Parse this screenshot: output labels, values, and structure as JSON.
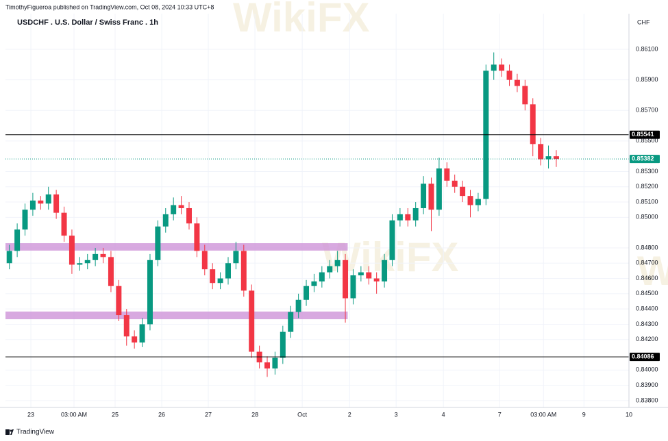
{
  "header": "TimothyFigueroa published on TradingView.com, Oct 08, 2024 10:33 UTC+8",
  "footer": "TradingView",
  "watermark": "WikiFX",
  "chart_data": {
    "type": "candlestick",
    "title": "USDCHF . U.S. Dollar / Swiss Franc . 1h",
    "currency": "CHF",
    "up_color": "#089981",
    "down_color": "#f23645",
    "grid": true,
    "open": [
      0.847,
      0.8478,
      0.8492,
      0.8505,
      0.8511,
      0.8509,
      0.8515,
      0.8503,
      0.8488,
      0.8469,
      0.847,
      0.8472,
      0.8476,
      0.8474,
      0.8455,
      0.8436,
      0.8422,
      0.8418,
      0.843,
      0.8472,
      0.8494,
      0.8502,
      0.8508,
      0.8506,
      0.8496,
      0.8478,
      0.8466,
      0.8457,
      0.846,
      0.847,
      0.8478,
      0.8452,
      0.8412,
      0.8405,
      0.8401,
      0.8408,
      0.8425,
      0.8438,
      0.8446,
      0.8455,
      0.8458,
      0.8464,
      0.8468,
      0.8472,
      0.8447,
      0.8462,
      0.8464,
      0.846,
      0.8458,
      0.8472,
      0.8498,
      0.8502,
      0.8498,
      0.8506,
      0.8522,
      0.8505,
      0.8532,
      0.8524,
      0.852,
      0.8514,
      0.8508,
      0.8512,
      0.8596,
      0.86,
      0.8596,
      0.859,
      0.8586,
      0.8574,
      0.8548,
      0.8538,
      0.854
    ],
    "high": [
      0.8482,
      0.8496,
      0.8509,
      0.8516,
      0.8514,
      0.852,
      0.8518,
      0.8507,
      0.8492,
      0.8474,
      0.8476,
      0.848,
      0.848,
      0.8478,
      0.8459,
      0.844,
      0.8426,
      0.8434,
      0.8476,
      0.8498,
      0.8506,
      0.8513,
      0.8514,
      0.851,
      0.85,
      0.8482,
      0.847,
      0.8464,
      0.8474,
      0.8484,
      0.8482,
      0.8456,
      0.8416,
      0.8409,
      0.8412,
      0.8429,
      0.8442,
      0.845,
      0.8459,
      0.8463,
      0.8468,
      0.8472,
      0.8478,
      0.8476,
      0.8466,
      0.8468,
      0.8468,
      0.8464,
      0.8476,
      0.8502,
      0.8506,
      0.8506,
      0.851,
      0.8527,
      0.8526,
      0.8539,
      0.8536,
      0.8528,
      0.8524,
      0.8518,
      0.8516,
      0.86,
      0.8608,
      0.8604,
      0.86,
      0.8594,
      0.859,
      0.8578,
      0.8552,
      0.8547,
      0.8544
    ],
    "low": [
      0.8466,
      0.8474,
      0.8488,
      0.8501,
      0.8505,
      0.8505,
      0.8499,
      0.8484,
      0.8463,
      0.8465,
      0.8466,
      0.8468,
      0.847,
      0.8451,
      0.8432,
      0.8416,
      0.8414,
      0.8415,
      0.8426,
      0.8468,
      0.849,
      0.8498,
      0.8502,
      0.8492,
      0.8474,
      0.8462,
      0.8453,
      0.8453,
      0.8456,
      0.8466,
      0.8448,
      0.8408,
      0.8401,
      0.83955,
      0.8397,
      0.8404,
      0.8421,
      0.8434,
      0.8442,
      0.8451,
      0.8454,
      0.846,
      0.8464,
      0.8431,
      0.8443,
      0.8458,
      0.8456,
      0.845,
      0.8454,
      0.8468,
      0.8494,
      0.8494,
      0.8494,
      0.8502,
      0.8491,
      0.8501,
      0.852,
      0.8516,
      0.851,
      0.85,
      0.8504,
      0.8508,
      0.859,
      0.8592,
      0.8586,
      0.8582,
      0.857,
      0.854,
      0.8534,
      0.8532,
      0.8533
    ],
    "close": [
      0.8478,
      0.8492,
      0.8505,
      0.8511,
      0.8509,
      0.8515,
      0.8503,
      0.8488,
      0.8469,
      0.847,
      0.8472,
      0.8476,
      0.8474,
      0.8455,
      0.8436,
      0.8422,
      0.8418,
      0.843,
      0.8472,
      0.8494,
      0.8502,
      0.8508,
      0.8506,
      0.8496,
      0.8478,
      0.8466,
      0.8457,
      0.846,
      0.847,
      0.8478,
      0.8452,
      0.8412,
      0.8405,
      0.8401,
      0.8408,
      0.8425,
      0.8438,
      0.8446,
      0.8455,
      0.8458,
      0.8464,
      0.8468,
      0.8472,
      0.8447,
      0.8462,
      0.8464,
      0.846,
      0.8458,
      0.8472,
      0.8498,
      0.8502,
      0.8498,
      0.8506,
      0.8522,
      0.8505,
      0.8532,
      0.8524,
      0.852,
      0.8514,
      0.8508,
      0.8512,
      0.8596,
      0.86,
      0.8596,
      0.859,
      0.8586,
      0.8574,
      0.8548,
      0.8538,
      0.854,
      0.85382
    ],
    "xlim": [
      -0.5,
      79.3
    ],
    "xticks": [
      {
        "value": 2.75,
        "label": "23"
      },
      {
        "value": 8.27,
        "label": "03:00 AM"
      },
      {
        "value": 13.53,
        "label": "25"
      },
      {
        "value": 19.5,
        "label": "26"
      },
      {
        "value": 25.46,
        "label": "27"
      },
      {
        "value": 31.43,
        "label": "28"
      },
      {
        "value": 37.48,
        "label": "Oct"
      },
      {
        "value": 43.54,
        "label": "2"
      },
      {
        "value": 49.5,
        "label": "3"
      },
      {
        "value": 55.55,
        "label": "4"
      },
      {
        "value": 62.75,
        "label": "7"
      },
      {
        "value": 68.36,
        "label": "03:00 AM"
      },
      {
        "value": 73.54,
        "label": "9"
      },
      {
        "value": 79.3,
        "label": "10"
      }
    ],
    "ylim": [
      0.83755,
      0.86311
    ],
    "yticks": [
      {
        "value": 0.861,
        "label": "0.86100"
      },
      {
        "value": 0.859,
        "label": "0.85900"
      },
      {
        "value": 0.857,
        "label": "0.85700"
      },
      {
        "value": 0.855,
        "label": "0.85500"
      },
      {
        "value": 0.853,
        "label": "0.85300"
      },
      {
        "value": 0.852,
        "label": "0.85200"
      },
      {
        "value": 0.851,
        "label": "0.85100"
      },
      {
        "value": 0.85,
        "label": "0.85000"
      },
      {
        "value": 0.848,
        "label": "0.84800"
      },
      {
        "value": 0.847,
        "label": "0.84700"
      },
      {
        "value": 0.846,
        "label": "0.84600"
      },
      {
        "value": 0.845,
        "label": "0.84500"
      },
      {
        "value": 0.844,
        "label": "0.84400"
      },
      {
        "value": 0.843,
        "label": "0.84300"
      },
      {
        "value": 0.842,
        "label": "0.84200"
      },
      {
        "value": 0.84,
        "label": "0.84000"
      },
      {
        "value": 0.839,
        "label": "0.83900"
      },
      {
        "value": 0.838,
        "label": "0.83800"
      }
    ],
    "levels": [
      {
        "value": 0.85541,
        "color": "#000000"
      },
      {
        "value": 0.84086,
        "color": "#000000"
      }
    ],
    "last_price": {
      "value": 0.85382,
      "color": "#089981"
    },
    "zones": [
      {
        "low": 0.84782,
        "high": 0.84831,
        "x": [
          -0.5,
          43.3
        ],
        "color": "#ce93d8"
      },
      {
        "low": 0.84333,
        "high": 0.84383,
        "x": [
          -0.5,
          43.3
        ],
        "color": "#ce93d8"
      }
    ]
  }
}
